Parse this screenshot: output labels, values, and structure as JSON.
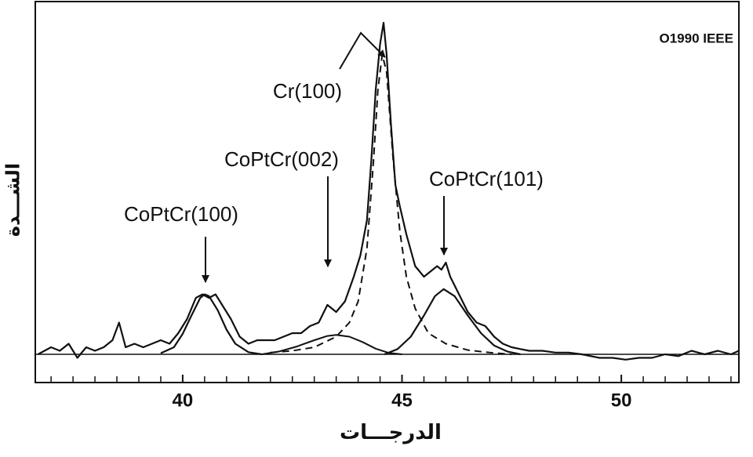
{
  "chart_data": {
    "type": "line",
    "xlabel": "الدرجـــات",
    "ylabel": "الشـــدة",
    "copyright": "O1990 IEEE",
    "annotations": [
      "CoPtCr(100)",
      "CoPtCr(002)",
      "CoPtCr(101)",
      "Cr(100)"
    ],
    "xlim": [
      36.64,
      52.68
    ],
    "ylim": [
      -8,
      100
    ],
    "xticks": [
      40,
      45,
      50
    ],
    "xticks_minor": [
      37,
      37.5,
      38,
      38.5,
      39,
      39.5,
      40.5,
      41,
      41.5,
      42,
      42.5,
      43,
      43.5,
      44,
      44.5,
      45.5,
      46,
      46.5,
      47,
      47.5,
      48,
      48.5,
      49,
      49.5,
      50.5,
      51,
      51.5,
      52,
      52.5
    ],
    "grid": false,
    "series": [
      {
        "color": "#111111",
        "style": "solid",
        "width": 2.2,
        "x": [
          36.7,
          37.0,
          37.2,
          37.4,
          37.6,
          37.8,
          38.0,
          38.2,
          38.4,
          38.55,
          38.7,
          38.9,
          39.1,
          39.3,
          39.5,
          39.7,
          39.9,
          40.1,
          40.3,
          40.45,
          40.6,
          40.75,
          40.9,
          41.1,
          41.3,
          41.5,
          41.7,
          41.9,
          42.1,
          42.3,
          42.5,
          42.7,
          42.9,
          43.1,
          43.3,
          43.5,
          43.7,
          43.9,
          44.05,
          44.2,
          44.3,
          44.4,
          44.5,
          44.58,
          44.65,
          44.75,
          44.85,
          44.95,
          45.1,
          45.3,
          45.5,
          45.7,
          45.8,
          45.9,
          46.0,
          46.1,
          46.3,
          46.5,
          46.7,
          46.9,
          47.1,
          47.3,
          47.5,
          47.7,
          47.9,
          48.2,
          48.5,
          48.8,
          49.1,
          49.5,
          49.8,
          50.1,
          50.4,
          50.7,
          51.0,
          51.3,
          51.6,
          51.9,
          52.2,
          52.5,
          52.68
        ],
        "values": [
          0,
          2,
          1,
          3,
          -1,
          2,
          1,
          2,
          4,
          9,
          2,
          3,
          2,
          3,
          4,
          3,
          6,
          10,
          16,
          17,
          16,
          17,
          14,
          10,
          5,
          3,
          4,
          4,
          4,
          5,
          6,
          6,
          8,
          9,
          14,
          12,
          15,
          22,
          28,
          38,
          55,
          75,
          88,
          94,
          85,
          65,
          48,
          42,
          34,
          25,
          22,
          24,
          25,
          24,
          26,
          22,
          17,
          12,
          9,
          8,
          5,
          3,
          2,
          1.5,
          1,
          1,
          0.5,
          0.5,
          0,
          -1,
          -1,
          -1.5,
          -1,
          -1,
          0,
          -0.5,
          1,
          0,
          1,
          0,
          1
        ]
      },
      {
        "color": "#111111",
        "style": "solid",
        "width": 2.2,
        "x": [
          39.5,
          39.8,
          40.0,
          40.2,
          40.4,
          40.5,
          40.6,
          40.8,
          41.0,
          41.2,
          41.5,
          41.8
        ],
        "values": [
          0.3,
          2,
          5.8,
          11,
          16,
          17,
          16.5,
          12.5,
          7,
          3,
          0.6,
          0
        ]
      },
      {
        "color": "#111111",
        "style": "solid",
        "width": 2,
        "x": [
          41.8,
          42.2,
          42.6,
          43.0,
          43.3,
          43.5,
          43.8,
          44.1,
          44.4,
          44.7,
          45.0
        ],
        "values": [
          0,
          0.8,
          2.2,
          4,
          5.2,
          5.5,
          5,
          3.5,
          1.6,
          0.4,
          0
        ]
      },
      {
        "color": "#111111",
        "style": "solid",
        "width": 2.2,
        "x": [
          44.6,
          44.9,
          45.2,
          45.5,
          45.75,
          45.95,
          46.2,
          46.5,
          46.8,
          47.1,
          47.4,
          47.7
        ],
        "values": [
          0,
          1.5,
          5,
          11,
          16.5,
          18.5,
          16.5,
          11,
          6,
          2.5,
          0.8,
          0
        ]
      },
      {
        "color": "#111111",
        "style": "dash",
        "width": 2,
        "x": [
          42.0,
          42.5,
          43.0,
          43.5,
          43.8,
          44.0,
          44.2,
          44.35,
          44.45,
          44.55,
          44.65,
          44.8,
          44.95,
          45.1,
          45.3,
          45.6,
          46.0,
          46.5,
          47.0,
          47.5
        ],
        "values": [
          0.5,
          1,
          2,
          5,
          9,
          15,
          30,
          55,
          75,
          85,
          80,
          55,
          35,
          22,
          13,
          6,
          3,
          1.2,
          0.5,
          0
        ]
      }
    ]
  }
}
